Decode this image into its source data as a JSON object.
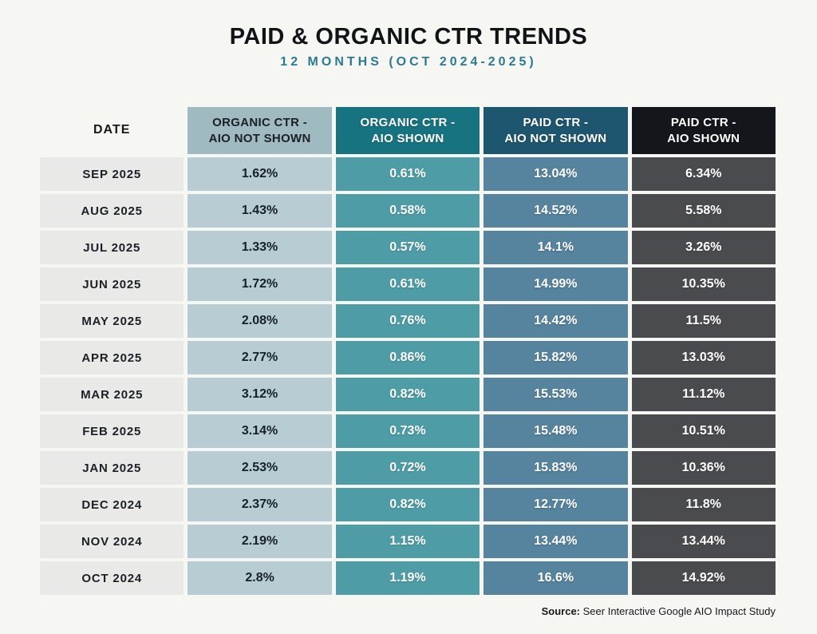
{
  "header": {
    "title": "PAID & ORGANIC CTR TRENDS",
    "subtitle": "12 MONTHS (OCT 2024-2025)"
  },
  "chart_data": {
    "type": "table",
    "title": "PAID & ORGANIC CTR TRENDS",
    "subtitle": "12 MONTHS (OCT 2024-2025)",
    "columns": [
      "DATE",
      "ORGANIC CTR -\nAIO NOT SHOWN",
      "ORGANIC CTR -\nAIO SHOWN",
      "PAID CTR -\nAIO NOT SHOWN",
      "PAID CTR -\nAIO SHOWN"
    ],
    "rows": [
      {
        "date": "SEP 2025",
        "organic_ctr_aio_not_shown": "1.62%",
        "organic_ctr_aio_shown": "0.61%",
        "paid_ctr_aio_not_shown": "13.04%",
        "paid_ctr_aio_shown": "6.34%"
      },
      {
        "date": "AUG 2025",
        "organic_ctr_aio_not_shown": "1.43%",
        "organic_ctr_aio_shown": "0.58%",
        "paid_ctr_aio_not_shown": "14.52%",
        "paid_ctr_aio_shown": "5.58%"
      },
      {
        "date": "JUL 2025",
        "organic_ctr_aio_not_shown": "1.33%",
        "organic_ctr_aio_shown": "0.57%",
        "paid_ctr_aio_not_shown": "14.1%",
        "paid_ctr_aio_shown": "3.26%"
      },
      {
        "date": "JUN 2025",
        "organic_ctr_aio_not_shown": "1.72%",
        "organic_ctr_aio_shown": "0.61%",
        "paid_ctr_aio_not_shown": "14.99%",
        "paid_ctr_aio_shown": "10.35%"
      },
      {
        "date": "MAY 2025",
        "organic_ctr_aio_not_shown": "2.08%",
        "organic_ctr_aio_shown": "0.76%",
        "paid_ctr_aio_not_shown": "14.42%",
        "paid_ctr_aio_shown": "11.5%"
      },
      {
        "date": "APR 2025",
        "organic_ctr_aio_not_shown": "2.77%",
        "organic_ctr_aio_shown": "0.86%",
        "paid_ctr_aio_not_shown": "15.82%",
        "paid_ctr_aio_shown": "13.03%"
      },
      {
        "date": "MAR 2025",
        "organic_ctr_aio_not_shown": "3.12%",
        "organic_ctr_aio_shown": "0.82%",
        "paid_ctr_aio_not_shown": "15.53%",
        "paid_ctr_aio_shown": "11.12%"
      },
      {
        "date": "FEB 2025",
        "organic_ctr_aio_not_shown": "3.14%",
        "organic_ctr_aio_shown": "0.73%",
        "paid_ctr_aio_not_shown": "15.48%",
        "paid_ctr_aio_shown": "10.51%"
      },
      {
        "date": "JAN 2025",
        "organic_ctr_aio_not_shown": "2.53%",
        "organic_ctr_aio_shown": "0.72%",
        "paid_ctr_aio_not_shown": "15.83%",
        "paid_ctr_aio_shown": "10.36%"
      },
      {
        "date": "DEC 2024",
        "organic_ctr_aio_not_shown": "2.37%",
        "organic_ctr_aio_shown": "0.82%",
        "paid_ctr_aio_not_shown": "12.77%",
        "paid_ctr_aio_shown": "11.8%"
      },
      {
        "date": "NOV 2024",
        "organic_ctr_aio_not_shown": "2.19%",
        "organic_ctr_aio_shown": "1.15%",
        "paid_ctr_aio_not_shown": "13.44%",
        "paid_ctr_aio_shown": "13.44%"
      },
      {
        "date": "OCT 2024",
        "organic_ctr_aio_not_shown": "2.8%",
        "organic_ctr_aio_shown": "1.19%",
        "paid_ctr_aio_not_shown": "16.6%",
        "paid_ctr_aio_shown": "14.92%"
      }
    ],
    "colors": {
      "page_background": "#f6f6f3",
      "title_text": "#111417",
      "subtitle_accent": "#2a7a90",
      "header_organic_not_shown": "#a0bac2",
      "header_organic_shown": "#177380",
      "header_paid_not_shown": "#1e566f",
      "header_paid_shown": "#13161a",
      "cell_date": "#e9e9e7",
      "cell_organic_not_shown": "#b7cdd3",
      "cell_organic_shown": "#4e9da6",
      "cell_paid_not_shown": "#56839e",
      "cell_paid_shown": "#4a4b4f"
    }
  },
  "source": {
    "label": "Source:",
    "text": "Seer Interactive Google AIO Impact Study"
  }
}
